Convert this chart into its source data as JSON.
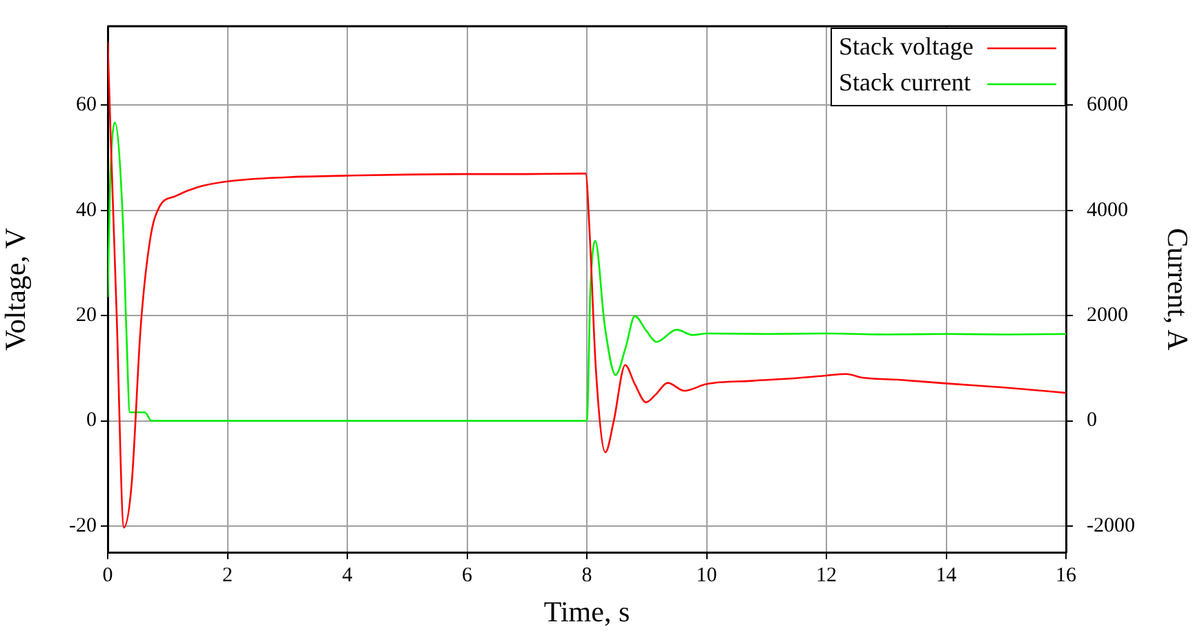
{
  "chart_data": {
    "type": "line",
    "xlabel": "Time, s",
    "ylabel": "Voltage, V",
    "y2label": "Current, A",
    "xlim": [
      0,
      16
    ],
    "xticks": [
      0,
      2,
      4,
      6,
      8,
      10,
      12,
      14,
      16
    ],
    "ylim": [
      -25,
      75
    ],
    "yticks": [
      -20,
      0,
      20,
      40,
      60
    ],
    "y2lim": [
      -2500,
      7500
    ],
    "y2ticks": [
      -2000,
      0,
      2000,
      4000,
      6000
    ],
    "grid": true,
    "legend": "top right",
    "marker": "none",
    "line_style": "solid",
    "series": [
      {
        "name": "Stack voltage",
        "color": "#ff0000",
        "x": [
          0,
          0.05,
          0.15,
          0.27,
          0.4,
          0.55,
          0.71,
          0.86,
          1.13,
          1.5,
          2,
          3,
          4,
          5,
          6,
          7,
          7.98,
          8.05,
          8.15,
          8.31,
          8.45,
          8.64,
          8.8,
          8.99,
          9.15,
          9.35,
          9.63,
          10,
          10.76,
          11.5,
          12,
          12.33,
          12.6,
          13.2,
          14,
          15,
          16
        ],
        "values": [
          72,
          54,
          20,
          -20.3,
          -12,
          17.7,
          34.6,
          40.6,
          42.7,
          44.4,
          45.5,
          46.3,
          46.6,
          46.8,
          46.9,
          46.9,
          47,
          35,
          10,
          -6,
          0,
          10.6,
          7,
          3.5,
          5,
          7.2,
          5.7,
          7,
          7.6,
          8.1,
          8.6,
          8.9,
          8.2,
          7.8,
          7.1,
          6.3,
          5.3
        ]
      },
      {
        "name": "Stack current",
        "color": "#00ee00",
        "axis": "y2",
        "x": [
          0,
          0.04,
          0.12,
          0.25,
          0.31,
          0.37,
          0.5,
          0.62,
          0.73,
          1,
          4,
          7.99,
          8,
          8.06,
          8.14,
          8.3,
          8.48,
          8.65,
          8.8,
          9,
          9.16,
          9.5,
          9.77,
          10,
          11,
          12,
          13,
          14,
          15,
          16
        ],
        "values": [
          2350,
          4500,
          5670,
          3890,
          1770,
          160,
          160,
          160,
          0,
          0,
          0,
          0,
          0,
          2500,
          3420,
          1800,
          870,
          1400,
          1990,
          1700,
          1500,
          1730,
          1630,
          1660,
          1650,
          1660,
          1640,
          1650,
          1640,
          1650
        ]
      }
    ]
  }
}
